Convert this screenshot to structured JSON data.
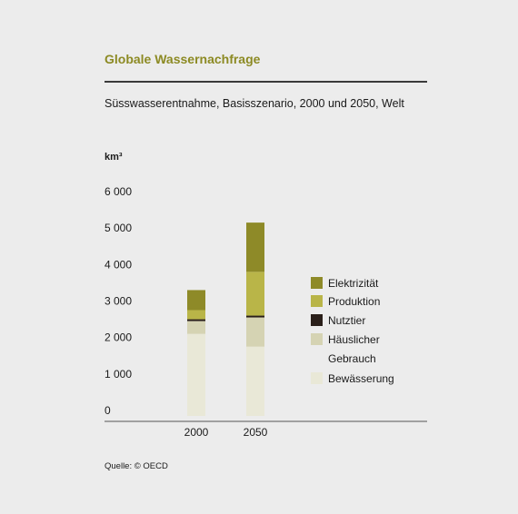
{
  "header": {
    "title": "Globale Wassernachfrage",
    "subtitle": "Süsswasserentnahme, Basisszenario, 2000 und 2050, Welt",
    "unit": "km³"
  },
  "footer": {
    "source": "Quelle: © OECD"
  },
  "chart_data": {
    "type": "bar",
    "stacked": true,
    "title": "Globale Wassernachfrage",
    "subtitle": "Süsswasserentnahme, Basisszenario, 2000 und 2050, Welt",
    "ylabel": "km³",
    "ylim": [
      0,
      6000
    ],
    "yticks": [
      0,
      1000,
      2000,
      3000,
      4000,
      5000,
      6000
    ],
    "ytick_labels": [
      "0",
      "1 000",
      "2 000",
      "3 000",
      "4 000",
      "5 000",
      "6 000"
    ],
    "categories": [
      "2000",
      "2050"
    ],
    "series": [
      {
        "name": "Bewässerung",
        "values": [
          2250,
          1900
        ],
        "color": "#e9e8d7"
      },
      {
        "name": "Häuslicher Gebrauch",
        "values": [
          350,
          800
        ],
        "color": "#d5d3b3"
      },
      {
        "name": "Nutztier",
        "values": [
          50,
          50
        ],
        "color": "#2a1f1a"
      },
      {
        "name": "Produktion",
        "values": [
          250,
          1200
        ],
        "color": "#b9b548"
      },
      {
        "name": "Elektrizität",
        "values": [
          550,
          1350
        ],
        "color": "#8e8a28"
      }
    ],
    "legend": {
      "position": "right",
      "order": [
        {
          "label": "Elektrizität",
          "color": "#8e8a28"
        },
        {
          "label": "Produktion",
          "color": "#b9b548"
        },
        {
          "label": "Nutztier",
          "color": "#2a1f1a"
        },
        {
          "label": "Häuslicher",
          "label2": "Gebrauch",
          "color": "#d5d3b3"
        },
        {
          "label": "Bewässerung",
          "color": "#e9e8d7"
        }
      ]
    },
    "grid": false
  }
}
